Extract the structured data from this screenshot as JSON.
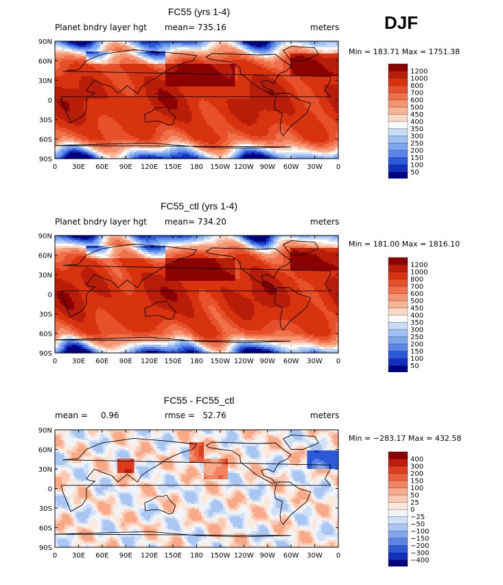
{
  "season_label": "DJF",
  "panels": [
    {
      "title": "FC55 (yrs 1-4)",
      "variable_label": "Planet bndry layer hgt",
      "stat_label": "mean= 735.16",
      "units": "meters",
      "min_max": "Min = 183.71  Max = 1751.38",
      "colorbar_labels": [
        "1200",
        "1000",
        "800",
        "700",
        "600",
        "500",
        "450",
        "400",
        "350",
        "300",
        "250",
        "200",
        "150",
        "100",
        "50"
      ],
      "colors": [
        "#8b0000",
        "#b81d0a",
        "#d8330f",
        "#e6502a",
        "#ef7049",
        "#f49470",
        "#f8b596",
        "#fbd9c6",
        "#fbfbfb",
        "#c8dcf6",
        "#9fc0f2",
        "#7da5ee",
        "#5b85e8",
        "#2b5ad8",
        "#1030c0",
        "#000080"
      ]
    },
    {
      "title": "FC55_ctl (yrs 1-4)",
      "variable_label": "Planet bndry layer hgt",
      "stat_label": "mean= 734.20",
      "units": "meters",
      "min_max": "Min = 181.00  Max = 1816.10",
      "colorbar_labels": [
        "1200",
        "1000",
        "800",
        "700",
        "600",
        "500",
        "450",
        "400",
        "350",
        "300",
        "250",
        "200",
        "150",
        "100",
        "50"
      ],
      "colors": [
        "#8b0000",
        "#b81d0a",
        "#d8330f",
        "#e6502a",
        "#ef7049",
        "#f49470",
        "#f8b596",
        "#fbd9c6",
        "#fbfbfb",
        "#c8dcf6",
        "#9fc0f2",
        "#7da5ee",
        "#5b85e8",
        "#2b5ad8",
        "#1030c0",
        "#000080"
      ]
    },
    {
      "title": "FC55 - FC55_ctl",
      "stat_label_left": "mean =     0.96",
      "stat_label": "rmse =   52.76",
      "units": "meters",
      "min_max": "Min = −283.17  Max = 432.58",
      "colorbar_labels": [
        "400",
        "300",
        "200",
        "150",
        "100",
        "50",
        "25",
        "0",
        "−25",
        "−50",
        "−100",
        "−150",
        "−200",
        "−300",
        "−400"
      ],
      "colors": [
        "#8b0000",
        "#c11a0a",
        "#de3b1c",
        "#ea5f3c",
        "#f2845f",
        "#f7a988",
        "#fbcab4",
        "#fde8dc",
        "#f0f4fb",
        "#d0e0f8",
        "#a9c6f3",
        "#7fa6ee",
        "#5a84e6",
        "#2c59d6",
        "#1030bd",
        "#000080"
      ]
    }
  ],
  "chart_data": [
    {
      "type": "heatmap",
      "title": "FC55 (yrs 1-4)",
      "variable": "Planet bndry layer hgt",
      "units": "meters",
      "mean": 735.16,
      "min": 183.71,
      "max": 1751.38,
      "x_ticks": [
        "0",
        "30E",
        "60E",
        "90E",
        "120E",
        "150E",
        "180",
        "150W",
        "120W",
        "90W",
        "60W",
        "30W",
        "0"
      ],
      "y_ticks": [
        "90N",
        "60N",
        "30N",
        "0",
        "30S",
        "60S",
        "90S"
      ],
      "contour_levels": [
        50,
        100,
        150,
        200,
        250,
        300,
        350,
        400,
        450,
        500,
        600,
        700,
        800,
        1000,
        1200
      ]
    },
    {
      "type": "heatmap",
      "title": "FC55_ctl (yrs 1-4)",
      "variable": "Planet bndry layer hgt",
      "units": "meters",
      "mean": 734.2,
      "min": 181.0,
      "max": 1816.1,
      "x_ticks": [
        "0",
        "30E",
        "60E",
        "90E",
        "120E",
        "150E",
        "180",
        "150W",
        "120W",
        "90W",
        "60W",
        "30W",
        "0"
      ],
      "y_ticks": [
        "90N",
        "60N",
        "30N",
        "0",
        "30S",
        "60S",
        "90S"
      ],
      "contour_levels": [
        50,
        100,
        150,
        200,
        250,
        300,
        350,
        400,
        450,
        500,
        600,
        700,
        800,
        1000,
        1200
      ]
    },
    {
      "type": "heatmap",
      "title": "FC55 - FC55_ctl",
      "units": "meters",
      "mean": 0.96,
      "rmse": 52.76,
      "min": -283.17,
      "max": 432.58,
      "x_ticks": [
        "0",
        "30E",
        "60E",
        "90E",
        "120E",
        "150E",
        "180",
        "150W",
        "120W",
        "90W",
        "60W",
        "30W",
        "0"
      ],
      "y_ticks": [
        "90N",
        "60N",
        "30N",
        "0",
        "30S",
        "60S",
        "90S"
      ],
      "contour_levels": [
        -400,
        -300,
        -200,
        -150,
        -100,
        -50,
        -25,
        0,
        25,
        50,
        100,
        150,
        200,
        300,
        400
      ]
    }
  ]
}
